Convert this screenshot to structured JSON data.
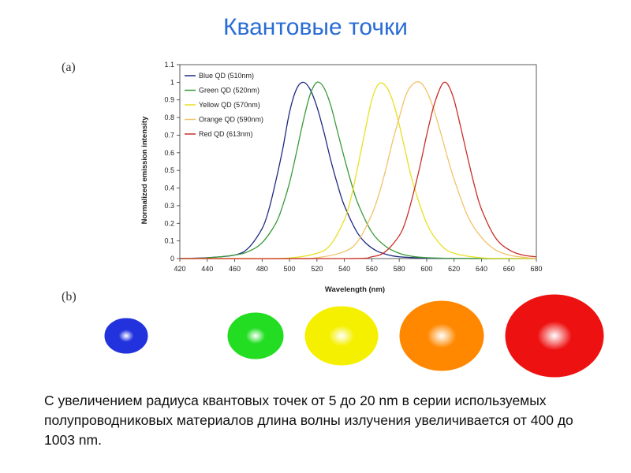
{
  "slide": {
    "title": "Квантовые точки",
    "panel_a_label": "(a)",
    "panel_b_label": "(b)",
    "caption": "С увеличением радиуса квантовых точек от 5 до 20 nm в серии используемых полупроводниковых материалов длина волны излучения увеличивается от 400 до 1003 nm."
  },
  "chart_data": {
    "type": "line",
    "title": "",
    "xlabel": "Wavelength (nm)",
    "ylabel": "Normalized emission intensity",
    "xlim": [
      420,
      680
    ],
    "ylim": [
      0,
      1.1
    ],
    "xticks": [
      420,
      440,
      460,
      480,
      500,
      520,
      540,
      560,
      580,
      600,
      620,
      640,
      660,
      680
    ],
    "yticks": [
      0,
      0.1,
      0.2,
      0.3,
      0.4,
      0.5,
      0.6,
      0.7,
      0.8,
      0.9,
      1,
      1.1
    ],
    "grid": false,
    "legend_position": "top-left",
    "series": [
      {
        "name": "Blue QD (510nm)",
        "color": "#1f2a80",
        "x": [
          420,
          440,
          460,
          470,
          480,
          485,
          490,
          495,
          500,
          505,
          510,
          515,
          520,
          525,
          530,
          535,
          540,
          550,
          560,
          570,
          580,
          600,
          620,
          640,
          660,
          680
        ],
        "y": [
          0,
          0.005,
          0.02,
          0.06,
          0.17,
          0.28,
          0.44,
          0.62,
          0.83,
          0.96,
          1.0,
          0.96,
          0.86,
          0.72,
          0.56,
          0.42,
          0.3,
          0.14,
          0.06,
          0.025,
          0.01,
          0.003,
          0.001,
          0,
          0,
          0
        ]
      },
      {
        "name": "Green QD (520nm)",
        "color": "#3a9a3a",
        "x": [
          420,
          440,
          460,
          470,
          480,
          490,
          495,
          500,
          505,
          510,
          515,
          520,
          525,
          530,
          535,
          540,
          545,
          550,
          560,
          570,
          580,
          590,
          600,
          620,
          640,
          660,
          680
        ],
        "y": [
          0,
          0.004,
          0.02,
          0.04,
          0.09,
          0.2,
          0.3,
          0.43,
          0.6,
          0.78,
          0.93,
          1.0,
          0.97,
          0.87,
          0.72,
          0.57,
          0.43,
          0.31,
          0.15,
          0.07,
          0.03,
          0.012,
          0.005,
          0.001,
          0,
          0,
          0
        ]
      },
      {
        "name": "Yellow QD (570nm)",
        "color": "#e8e020",
        "x": [
          420,
          480,
          500,
          520,
          530,
          540,
          545,
          550,
          555,
          560,
          565,
          570,
          575,
          580,
          585,
          590,
          600,
          610,
          620,
          640,
          660,
          680
        ],
        "y": [
          0,
          0,
          0.003,
          0.03,
          0.08,
          0.22,
          0.35,
          0.53,
          0.72,
          0.9,
          0.99,
          0.98,
          0.9,
          0.76,
          0.59,
          0.43,
          0.2,
          0.08,
          0.03,
          0.004,
          0.001,
          0
        ]
      },
      {
        "name": "Orange QD (590nm)",
        "color": "#f2c26a",
        "x": [
          420,
          500,
          520,
          540,
          550,
          560,
          565,
          570,
          575,
          580,
          585,
          590,
          595,
          600,
          605,
          610,
          615,
          620,
          630,
          640,
          650,
          660,
          670,
          680
        ],
        "y": [
          0,
          0,
          0.005,
          0.04,
          0.1,
          0.25,
          0.36,
          0.5,
          0.66,
          0.8,
          0.93,
          0.99,
          1.0,
          0.95,
          0.85,
          0.72,
          0.58,
          0.45,
          0.24,
          0.12,
          0.05,
          0.02,
          0.008,
          0
        ]
      },
      {
        "name": "Red QD (613nm)",
        "color": "#c8302a",
        "x": [
          420,
          540,
          560,
          570,
          580,
          585,
          590,
          595,
          600,
          605,
          610,
          613,
          616,
          620,
          625,
          630,
          635,
          640,
          650,
          660,
          670,
          680
        ],
        "y": [
          0,
          0,
          0.01,
          0.04,
          0.13,
          0.22,
          0.36,
          0.52,
          0.7,
          0.86,
          0.97,
          1.0,
          0.98,
          0.9,
          0.74,
          0.57,
          0.41,
          0.28,
          0.12,
          0.05,
          0.02,
          0.01
        ]
      }
    ]
  },
  "spheres": [
    {
      "name": "blue",
      "color": "#2233dd"
    },
    {
      "name": "green",
      "color": "#22dd22"
    },
    {
      "name": "yellow",
      "color": "#f5f000"
    },
    {
      "name": "orange",
      "color": "#ff8800"
    },
    {
      "name": "red",
      "color": "#ee1111"
    }
  ]
}
